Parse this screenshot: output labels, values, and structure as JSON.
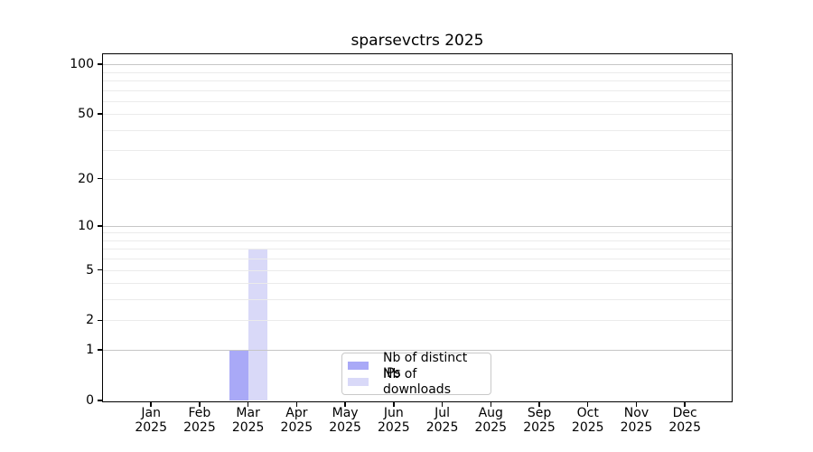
{
  "chart_data": {
    "type": "bar",
    "title": "sparsevctrs 2025",
    "year": "2025",
    "categories": [
      "Jan",
      "Feb",
      "Mar",
      "Apr",
      "May",
      "Jun",
      "Jul",
      "Aug",
      "Sep",
      "Oct",
      "Nov",
      "Dec"
    ],
    "series": [
      {
        "name": "Nb of distinct IPs",
        "color": "#a9a9f7",
        "values": [
          0,
          0,
          1,
          0,
          0,
          0,
          0,
          0,
          0,
          0,
          0,
          0
        ]
      },
      {
        "name": "Nb of downloads",
        "color": "#d9d9f8",
        "values": [
          0,
          0,
          7,
          0,
          0,
          0,
          0,
          0,
          0,
          0,
          0,
          0
        ]
      }
    ],
    "xlabel": "",
    "ylabel": "",
    "yscale": "log1p",
    "ylim": [
      0,
      115
    ],
    "yticks": [
      0,
      1,
      2,
      5,
      10,
      20,
      50,
      100
    ],
    "major_gridlines": [
      1,
      10,
      100
    ],
    "minor_gridlines": [
      2,
      3,
      4,
      5,
      6,
      7,
      8,
      9,
      20,
      30,
      40,
      50,
      60,
      70,
      80,
      90
    ],
    "grid": "horizontal",
    "legend_position": "bottom-center"
  }
}
